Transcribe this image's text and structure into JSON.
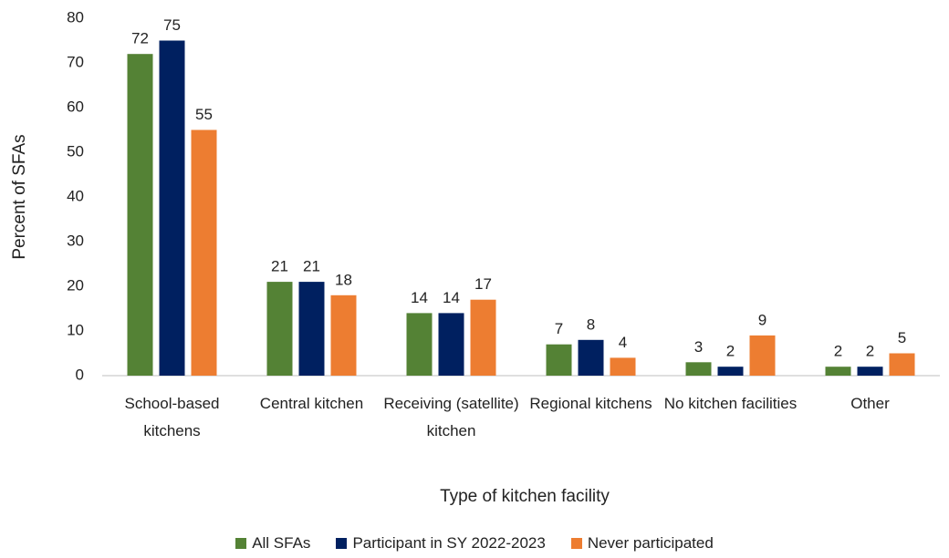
{
  "chart_data": {
    "type": "bar",
    "x_label": "Type of kitchen facility",
    "y_label": "Percent of SFAs",
    "categories": [
      "School-based kitchens",
      "Central kitchen",
      "Receiving (satellite) kitchen",
      "Regional kitchens",
      "No kitchen facilities",
      "Other"
    ],
    "series": [
      {
        "name": "All SFAs",
        "color": "#548235",
        "values": [
          72,
          21,
          14,
          7,
          3,
          2
        ]
      },
      {
        "name": "Participant in SY 2022-2023",
        "color": "#002060",
        "values": [
          75,
          21,
          14,
          8,
          2,
          2
        ]
      },
      {
        "name": "Never participated",
        "color": "#ED7D31",
        "values": [
          55,
          18,
          17,
          4,
          9,
          5
        ]
      }
    ],
    "ylim": [
      0,
      80
    ],
    "yticks": [
      0,
      10,
      20,
      30,
      40,
      50,
      60,
      70,
      80
    ],
    "grid": false,
    "legend": "bottom"
  }
}
